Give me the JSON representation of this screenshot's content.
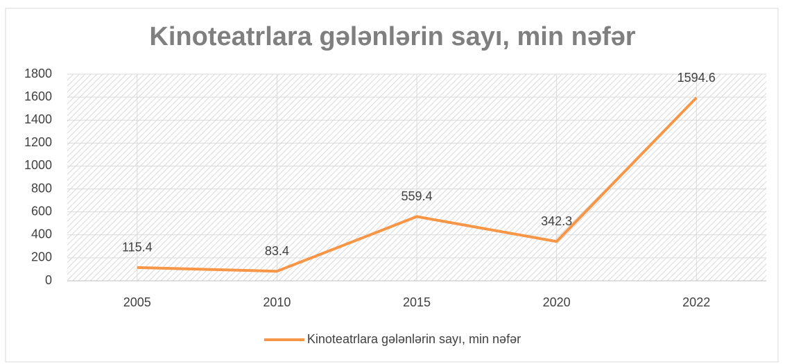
{
  "chart_data": {
    "type": "line",
    "title": "Kinoteatrlara gələnlərin sayı, min nəfər",
    "categories": [
      "2005",
      "2010",
      "2015",
      "2020",
      "2022"
    ],
    "series": [
      {
        "name": "Kinoteatrlara gələnlərin sayı, min nəfər",
        "color": "#f79646",
        "values": [
          115.4,
          83.4,
          559.4,
          342.3,
          1594.6
        ]
      }
    ],
    "ylim": [
      0,
      1800
    ],
    "yticks": [
      0,
      200,
      400,
      600,
      800,
      1000,
      1200,
      1400,
      1600,
      1800
    ],
    "grid": true,
    "legend": "bottom"
  }
}
